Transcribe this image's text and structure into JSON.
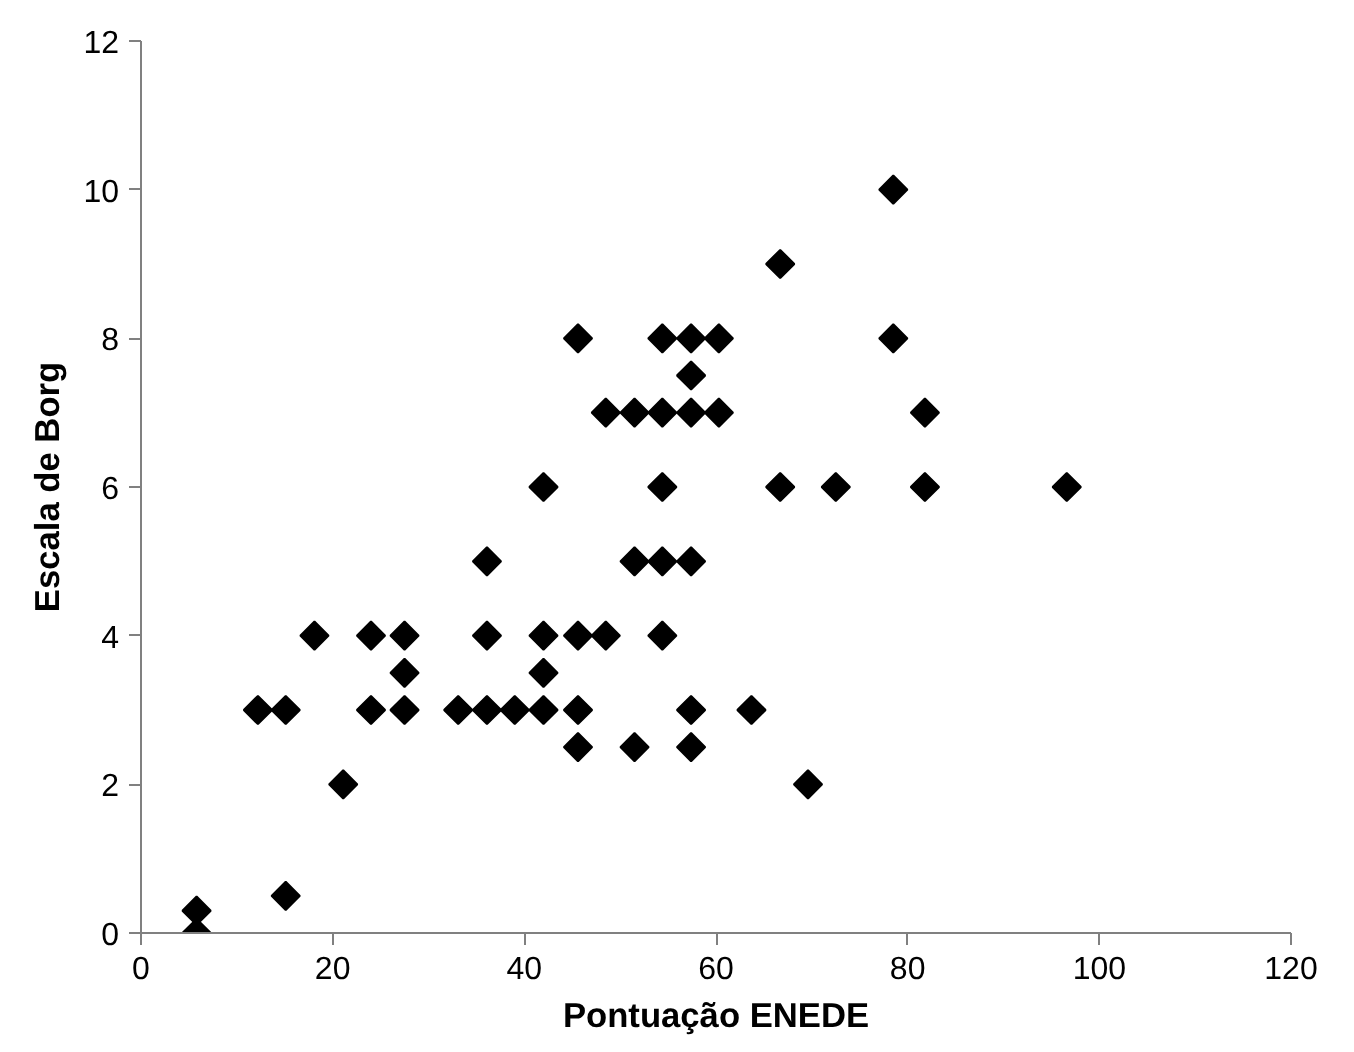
{
  "chart_data": {
    "type": "scatter",
    "xlabel": "Pontuação ENEDE",
    "ylabel": "Escala de Borg",
    "xlim": [
      0,
      120
    ],
    "ylim": [
      0,
      12
    ],
    "xticks": [
      0,
      20,
      40,
      60,
      80,
      100,
      120
    ],
    "yticks": [
      0,
      2,
      4,
      6,
      8,
      10,
      12
    ],
    "grid": false,
    "marker": "diamond",
    "series": [
      {
        "color": "#000000",
        "x": [
          5.8,
          5.8,
          15.1,
          12.2,
          15.1,
          24.0,
          27.5,
          33.1,
          36.1,
          39.0,
          42.0,
          45.6,
          57.4,
          21.1,
          45.6,
          51.5,
          57.4,
          27.5,
          42.0,
          18.1,
          24.0,
          27.5,
          36.1,
          42.0,
          45.6,
          48.5,
          54.4,
          36.1,
          51.5,
          54.4,
          57.4,
          42.0,
          54.4,
          48.5,
          51.5,
          54.4,
          57.4,
          60.3,
          57.4,
          45.6,
          54.4,
          57.4,
          60.3,
          78.5,
          81.8,
          66.7,
          72.5,
          81.8,
          96.6,
          63.7,
          69.6,
          66.7,
          78.5
        ],
        "values": [
          0,
          0.3,
          0.5,
          3,
          3,
          3,
          3,
          3,
          3,
          3,
          3,
          3,
          3,
          2,
          2.5,
          2.5,
          2.5,
          3.5,
          3.5,
          4,
          4,
          4,
          4,
          4,
          4,
          4,
          4,
          5,
          5,
          5,
          5,
          6,
          6,
          7,
          7,
          7,
          7,
          7,
          7.5,
          8,
          8,
          8,
          8,
          8,
          7,
          6,
          6,
          6,
          6,
          3,
          2,
          9,
          10
        ]
      }
    ]
  }
}
